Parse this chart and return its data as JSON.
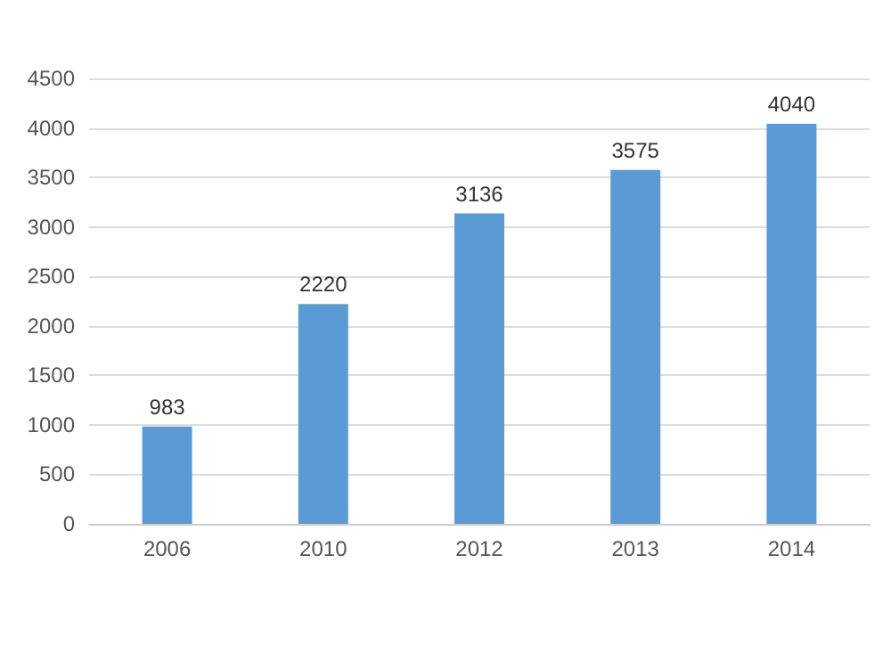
{
  "chart_data": {
    "type": "bar",
    "categories": [
      "2006",
      "2010",
      "2012",
      "2013",
      "2014"
    ],
    "values": [
      983,
      2220,
      3136,
      3575,
      4040
    ],
    "color": "#5b9bd5",
    "ylim": [
      0,
      4500
    ],
    "yticks": [
      0,
      500,
      1000,
      1500,
      2000,
      2500,
      3000,
      3500,
      4000,
      4500
    ],
    "grid": "y",
    "data_labels": true
  }
}
